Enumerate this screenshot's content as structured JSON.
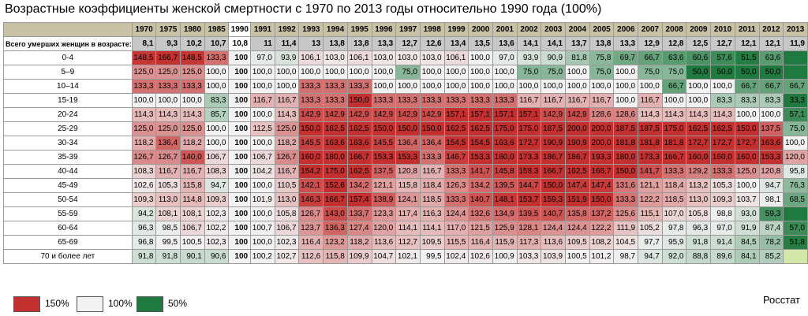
{
  "title": "Возрастные коэффициенты женской смертности с 1970 по 2013 годы относительно 1990 года (100%)",
  "source": "Росстат",
  "legend": [
    {
      "label": "150%",
      "color": "#c4302f"
    },
    {
      "label": "100%",
      "color": "#f2f2f2"
    },
    {
      "label": "50%",
      "color": "#1e7a3e"
    }
  ],
  "chart_data": {
    "type": "heatmap",
    "title": "Возрастные коэффициенты женской смертности с 1970 по 2013 годы относительно 1990 года (100%)",
    "years": [
      "1970",
      "1975",
      "1980",
      "1985",
      "1990",
      "1991",
      "1992",
      "1993",
      "1994",
      "1995",
      "1996",
      "1997",
      "1998",
      "1999",
      "2000",
      "2001",
      "2002",
      "2003",
      "2004",
      "2005",
      "2006",
      "2007",
      "2008",
      "2009",
      "2010",
      "2011",
      "2012",
      "2013"
    ],
    "color_scale": {
      "low": 50,
      "mid": 100,
      "high": 150,
      "low_color": "#1e7a3e",
      "mid_color": "#f2f2f2",
      "high_color": "#c4302f"
    },
    "all_ages": {
      "label": "Всего умерших женщин в возрасте:",
      "values": [
        "8,1",
        "9,3",
        "10,2",
        "10,7",
        "10,8",
        "11",
        "11,4",
        "13",
        "13,8",
        "13,8",
        "13,3",
        "12,7",
        "12,6",
        "13,4",
        "13,5",
        "13,6",
        "14,1",
        "14,1",
        "13,7",
        "13,8",
        "13,3",
        "12,9",
        "12,8",
        "12,5",
        "12,7",
        "12,1",
        "12,1",
        "11,9"
      ]
    },
    "rows": [
      {
        "label": "0-4",
        "values": [
          "148,5",
          "166,7",
          "148,5",
          "133,3",
          "100",
          "97,0",
          "93,9",
          "106,1",
          "103,0",
          "106,1",
          "103,0",
          "103,0",
          "103,0",
          "106,1",
          "100,0",
          "97,0",
          "93,9",
          "90,9",
          "81,8",
          "75,8",
          "69,7",
          "66,7",
          "63,6",
          "60,6",
          "57,6",
          "51,5",
          "63,6",
          ""
        ]
      },
      {
        "label": "5–9",
        "values": [
          "125,0",
          "125,0",
          "125,0",
          "100,0",
          "100",
          "100,0",
          "100,0",
          "100,0",
          "100,0",
          "100,0",
          "100,0",
          "75,0",
          "100,0",
          "100,0",
          "100,0",
          "100,0",
          "75,0",
          "75,0",
          "100,0",
          "75,0",
          "100,0",
          "75,0",
          "75,0",
          "50,0",
          "50,0",
          "50,0",
          "50,0",
          ""
        ]
      },
      {
        "label": "10–14",
        "values": [
          "133,3",
          "133,3",
          "133,3",
          "100,0",
          "100",
          "100,0",
          "100,0",
          "133,3",
          "133,3",
          "133,3",
          "100,0",
          "100,0",
          "100,0",
          "100,0",
          "100,0",
          "100,0",
          "100,0",
          "100,0",
          "100,0",
          "100,0",
          "100,0",
          "100,0",
          "66,7",
          "100,0",
          "100,0",
          "66,7",
          "66,7",
          "66,7"
        ]
      },
      {
        "label": "15-19",
        "values": [
          "100,0",
          "100,0",
          "100,0",
          "83,3",
          "100",
          "116,7",
          "116,7",
          "133,3",
          "133,3",
          "150,0",
          "133,3",
          "133,3",
          "133,3",
          "133,3",
          "133,3",
          "133,3",
          "116,7",
          "116,7",
          "116,7",
          "116,7",
          "100,0",
          "116,7",
          "100,0",
          "100,0",
          "83,3",
          "83,3",
          "83,3",
          "33,3"
        ]
      },
      {
        "label": "20-24",
        "values": [
          "114,3",
          "114,3",
          "114,3",
          "85,7",
          "100",
          "100,0",
          "114,3",
          "142,9",
          "142,9",
          "142,9",
          "142,9",
          "142,9",
          "142,9",
          "157,1",
          "157,1",
          "157,1",
          "157,1",
          "142,9",
          "142,9",
          "128,6",
          "128,6",
          "114,3",
          "114,3",
          "114,3",
          "114,3",
          "100,0",
          "100,0",
          "57,1"
        ]
      },
      {
        "label": "25-29",
        "values": [
          "125,0",
          "125,0",
          "125,0",
          "100,0",
          "100",
          "112,5",
          "125,0",
          "150,0",
          "162,5",
          "162,5",
          "150,0",
          "150,0",
          "150,0",
          "162,5",
          "162,5",
          "175,0",
          "175,0",
          "187,5",
          "200,0",
          "200,0",
          "187,5",
          "187,5",
          "175,0",
          "162,5",
          "162,5",
          "150,0",
          "137,5",
          "75,0"
        ]
      },
      {
        "label": "30-34",
        "values": [
          "118,2",
          "136,4",
          "118,2",
          "100,0",
          "100",
          "100,0",
          "118,2",
          "145,5",
          "163,6",
          "163,6",
          "145,5",
          "136,4",
          "136,4",
          "154,5",
          "154,5",
          "163,6",
          "172,7",
          "190,9",
          "190,9",
          "200,0",
          "181,8",
          "181,8",
          "181,8",
          "172,7",
          "172,7",
          "172,7",
          "163,6",
          "100,0"
        ]
      },
      {
        "label": "35-39",
        "values": [
          "126,7",
          "126,7",
          "140,0",
          "106,7",
          "100",
          "106,7",
          "126,7",
          "160,0",
          "180,0",
          "166,7",
          "153,3",
          "153,3",
          "133,3",
          "146,7",
          "153,3",
          "160,0",
          "173,3",
          "186,7",
          "186,7",
          "193,3",
          "180,0",
          "173,3",
          "166,7",
          "160,0",
          "160,0",
          "160,0",
          "153,3",
          "120,0"
        ]
      },
      {
        "label": "40-44",
        "values": [
          "108,3",
          "116,7",
          "116,7",
          "108,3",
          "100",
          "104,2",
          "116,7",
          "154,2",
          "175,0",
          "162,5",
          "137,5",
          "120,8",
          "116,7",
          "133,3",
          "141,7",
          "145,8",
          "158,3",
          "166,7",
          "162,5",
          "166,7",
          "150,0",
          "141,7",
          "133,3",
          "129,2",
          "133,3",
          "125,0",
          "120,8",
          "95,8"
        ]
      },
      {
        "label": "45-49",
        "values": [
          "102,6",
          "105,3",
          "115,8",
          "94,7",
          "100",
          "100,0",
          "110,5",
          "142,1",
          "152,6",
          "134,2",
          "121,1",
          "115,8",
          "118,4",
          "126,3",
          "134,2",
          "139,5",
          "144,7",
          "150,0",
          "147,4",
          "147,4",
          "131,6",
          "121,1",
          "118,4",
          "113,2",
          "105,3",
          "100,0",
          "94,7",
          "76,3"
        ]
      },
      {
        "label": "50-54",
        "values": [
          "109,3",
          "113,0",
          "114,8",
          "109,3",
          "100",
          "101,9",
          "113,0",
          "146,3",
          "166,7",
          "157,4",
          "138,9",
          "124,1",
          "118,5",
          "133,3",
          "140,7",
          "148,1",
          "153,7",
          "159,3",
          "151,9",
          "150,0",
          "133,3",
          "122,2",
          "118,5",
          "113,0",
          "109,3",
          "103,7",
          "98,1",
          "68,5"
        ]
      },
      {
        "label": "55-59",
        "values": [
          "94,2",
          "108,1",
          "108,1",
          "102,3",
          "100",
          "100,0",
          "105,8",
          "126,7",
          "143,0",
          "133,7",
          "123,3",
          "117,4",
          "116,3",
          "124,4",
          "132,6",
          "134,9",
          "139,5",
          "140,7",
          "135,8",
          "137,2",
          "125,6",
          "115,1",
          "107,0",
          "105,8",
          "98,8",
          "93,0",
          "59,3",
          ""
        ]
      },
      {
        "label": "60-64",
        "values": [
          "96,3",
          "98,5",
          "106,7",
          "102,2",
          "100",
          "100,7",
          "106,7",
          "123,7",
          "136,3",
          "127,4",
          "120,0",
          "114,1",
          "114,1",
          "117,0",
          "121,5",
          "125,9",
          "128,1",
          "124,4",
          "124,4",
          "122,2",
          "111,9",
          "105,2",
          "97,8",
          "96,3",
          "97,0",
          "91,9",
          "87,4",
          "57,0"
        ]
      },
      {
        "label": "65-69",
        "values": [
          "96,8",
          "99,5",
          "100,5",
          "102,3",
          "100",
          "100,0",
          "102,3",
          "116,4",
          "123,2",
          "118,2",
          "113,6",
          "112,7",
          "109,5",
          "115,5",
          "116,4",
          "115,9",
          "117,3",
          "113,6",
          "109,5",
          "108,2",
          "104,5",
          "97,7",
          "95,9",
          "91,8",
          "91,4",
          "84,5",
          "78,2",
          "51,8"
        ]
      },
      {
        "label": "70 и более лет",
        "values": [
          "91,8",
          "91,8",
          "90,1",
          "90,6",
          "100",
          "100,2",
          "102,7",
          "112,6",
          "115,8",
          "109,9",
          "104,7",
          "102,1",
          "99,5",
          "102,4",
          "102,6",
          "100,9",
          "103,3",
          "103,9",
          "100,5",
          "101,2",
          "98,7",
          "94,7",
          "92,0",
          "88,8",
          "89,6",
          "84,1",
          "85,2",
          ""
        ]
      }
    ]
  }
}
